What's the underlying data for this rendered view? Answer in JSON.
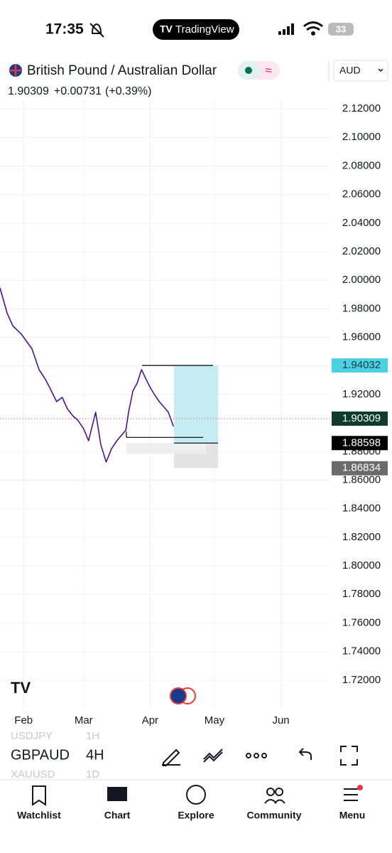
{
  "status_bar": {
    "time": "17:35",
    "app": "TradingView",
    "battery": "33"
  },
  "symbol": {
    "name": "British Pound / Australian Dollar",
    "price": "1.90309",
    "change": "+0.00731",
    "change_pct": "(+0.39%)",
    "currency": "AUD"
  },
  "chart_data": {
    "type": "line",
    "color": "#4a148c",
    "grid": true,
    "x": [
      21,
      24.3,
      27,
      30.9,
      33,
      35.9,
      39.2,
      42,
      44.1,
      47.4,
      50,
      52.4,
      55,
      57.3,
      60,
      62.3,
      65.6,
      68,
      70.5,
      73,
      75.5,
      79.7,
      81,
      83,
      85,
      87,
      89,
      91,
      93,
      95.3,
      97,
      99.5,
      101.9
    ],
    "values": [
      1.9946,
      1.977,
      1.968,
      1.9623,
      1.958,
      1.952,
      1.9374,
      1.931,
      1.925,
      1.915,
      1.918,
      1.91,
      1.905,
      1.902,
      1.896,
      1.8876,
      1.9076,
      1.885,
      1.8727,
      1.882,
      1.8876,
      1.895,
      1.908,
      1.9225,
      1.928,
      1.9374,
      1.931,
      1.925,
      1.92,
      1.915,
      1.912,
      1.9076,
      1.8976
    ],
    "xlim": [
      21,
      175
    ],
    "xticks": [
      {
        "value": 32,
        "label": "Feb"
      },
      {
        "value": 60,
        "label": "Mar"
      },
      {
        "value": 91,
        "label": "Apr"
      },
      {
        "value": 121,
        "label": "May"
      },
      {
        "value": 152,
        "label": "Jun"
      }
    ],
    "ylim": [
      1.7,
      2.126
    ],
    "yticks": [
      {
        "value": 2.12,
        "label": "2.12000"
      },
      {
        "value": 2.1,
        "label": "2.10000"
      },
      {
        "value": 2.08,
        "label": "2.08000"
      },
      {
        "value": 2.06,
        "label": "2.06000"
      },
      {
        "value": 2.04,
        "label": "2.04000"
      },
      {
        "value": 2.02,
        "label": "2.02000"
      },
      {
        "value": 2.0,
        "label": "2.00000"
      },
      {
        "value": 1.98,
        "label": "1.98000"
      },
      {
        "value": 1.96,
        "label": "1.96000"
      },
      {
        "value": 1.94,
        "label": "1.94000"
      },
      {
        "value": 1.92,
        "label": "1.92000"
      },
      {
        "value": 1.9,
        "label": "1.90000"
      },
      {
        "value": 1.88,
        "label": "1.88000"
      },
      {
        "value": 1.86,
        "label": "1.86000"
      },
      {
        "value": 1.84,
        "label": "1.84000"
      },
      {
        "value": 1.82,
        "label": "1.82000"
      },
      {
        "value": 1.8,
        "label": "1.80000"
      },
      {
        "value": 1.78,
        "label": "1.78000"
      },
      {
        "value": 1.76,
        "label": "1.76000"
      },
      {
        "value": 1.74,
        "label": "1.74000"
      },
      {
        "value": 1.72,
        "label": "1.72000"
      }
    ],
    "price_labels": [
      {
        "value": 1.94032,
        "color": "#4dd0e1",
        "text_color": "#0b3d46"
      },
      {
        "value": 1.90309,
        "color": "#0d3b2c",
        "text_color": "#ffffff"
      },
      {
        "value": 1.88598,
        "color": "#000000",
        "text_color": "#ffffff"
      },
      {
        "value": 1.86834,
        "color": "#6b6b6b",
        "text_color": "#ffffff"
      }
    ]
  },
  "toolbar": {
    "symbols": [
      {
        "name": "USDJPY",
        "interval": "1H"
      },
      {
        "name": "GBPAUD",
        "interval": "4H"
      },
      {
        "name": "XAUUSD",
        "interval": "1D"
      }
    ]
  },
  "nav": [
    "Watchlist",
    "Chart",
    "Explore",
    "Community",
    "Menu"
  ]
}
